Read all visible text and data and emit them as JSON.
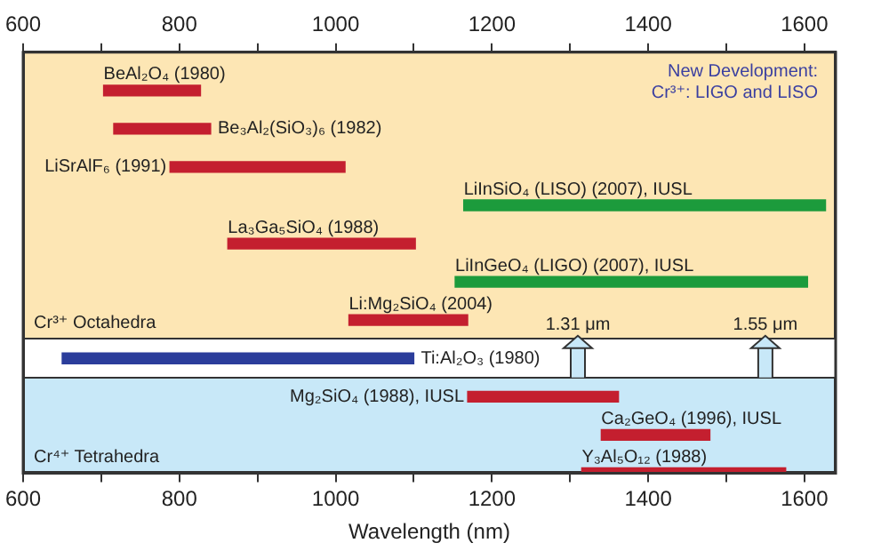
{
  "chart_data": {
    "type": "bar",
    "orientation": "horizontal",
    "xlabel": "Wavelength (nm)",
    "categories": [
      "BeAl₂O₄ (1980)",
      "Be₃Al₂(SiO₃)₆ (1982)",
      "LiSrAlF₆ (1991)",
      "LiInSiO₄ (LISO) (2007), IUSL",
      "La₃Ga₅SiO₄ (1988)",
      "LiInGeO₄ (LIGO) (2007), IUSL",
      "Li:Mg₂SiO₄ (2004)",
      "Ti:Al₂O₃ (1980)",
      "Mg₂SiO₄ (1988), IUSL",
      "Ca₂GeO₄ (1996), IUSL",
      "Y₃Al₅O₁₂ (1988)"
    ],
    "base": [
      703,
      716,
      788,
      1164,
      862,
      1153,
      1017,
      650,
      1169,
      1340,
      1315
    ],
    "values": [
      124,
      124,
      224,
      463,
      240,
      451,
      152,
      450,
      193,
      139,
      261
    ],
    "colors": [
      "#c41f2f",
      "#c41f2f",
      "#c41f2f",
      "#1c9b3c",
      "#c41f2f",
      "#1c9b3c",
      "#c41f2f",
      "#2b3d9b",
      "#c41f2f",
      "#c41f2f",
      "#c41f2f"
    ],
    "xlim": [
      600,
      1640
    ],
    "xticks": [
      600,
      {
        "value": 700,
        "label": null
      },
      800,
      {
        "value": 900,
        "label": null
      },
      1000,
      {
        "value": 1100,
        "label": null
      },
      1200,
      {
        "value": 1300,
        "label": null
      },
      1400,
      {
        "value": 1500,
        "label": null
      },
      1600
    ],
    "x2lim": [
      600,
      1640
    ],
    "x2ticks": [
      600,
      {
        "value": 700,
        "label": null
      },
      800,
      {
        "value": 900,
        "label": null
      },
      1000,
      {
        "value": 1100,
        "label": null
      },
      1200,
      {
        "value": 1300,
        "label": null
      },
      1400,
      {
        "value": 1500,
        "label": null
      },
      1600
    ],
    "annotations": [
      "Cr³⁺ Octahedra",
      "New Development:",
      "Cr³⁺: LIGO and LISO",
      "Cr⁴⁺ Tetrahedra"
    ],
    "ref_lines": [
      {
        "axis": "x",
        "value": 1310,
        "label": "1.31 μm",
        "color": "#c8e8f8"
      },
      {
        "axis": "x",
        "value": 1550,
        "label": "1.55 μm",
        "color": "#c8e8f8"
      }
    ],
    "grid": false,
    "legend": false
  }
}
